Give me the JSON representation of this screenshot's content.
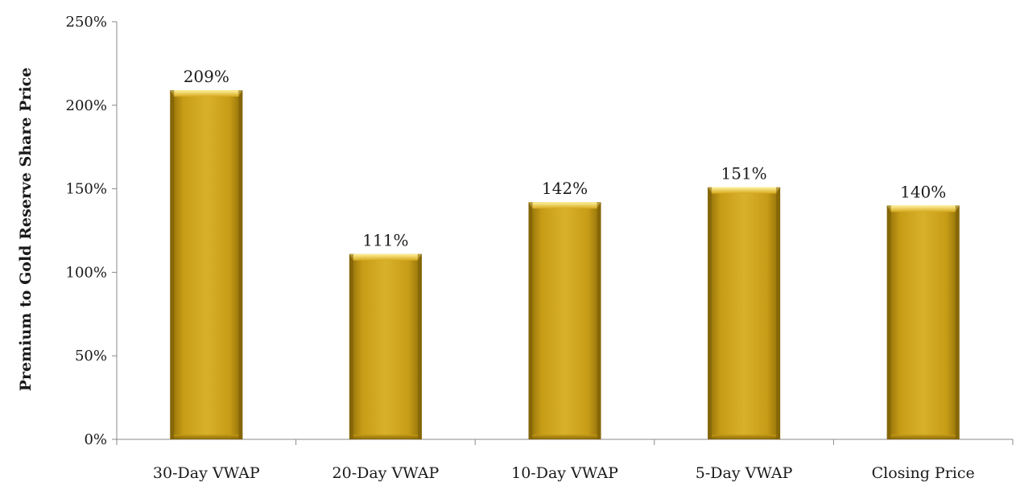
{
  "chart_data": {
    "type": "bar",
    "title": "",
    "xlabel": "",
    "ylabel": "Premium to Gold Reserve Share Price",
    "categories": [
      "30-Day VWAP",
      "20-Day VWAP",
      "10-Day VWAP",
      "5-Day VWAP",
      "Closing Price"
    ],
    "values": [
      209,
      111,
      142,
      151,
      140
    ],
    "data_labels": [
      "209%",
      "111%",
      "142%",
      "151%",
      "140%"
    ],
    "ylim": [
      0,
      250
    ],
    "yticks": [
      0,
      50,
      100,
      150,
      200,
      250
    ],
    "ytick_labels": [
      "0%",
      "50%",
      "100%",
      "150%",
      "200%",
      "250%"
    ],
    "grid": false,
    "legend": "none",
    "bar_color": "#c9a21a",
    "bar_color_light": "#f2d645",
    "bar_color_dark": "#8c6c08"
  }
}
